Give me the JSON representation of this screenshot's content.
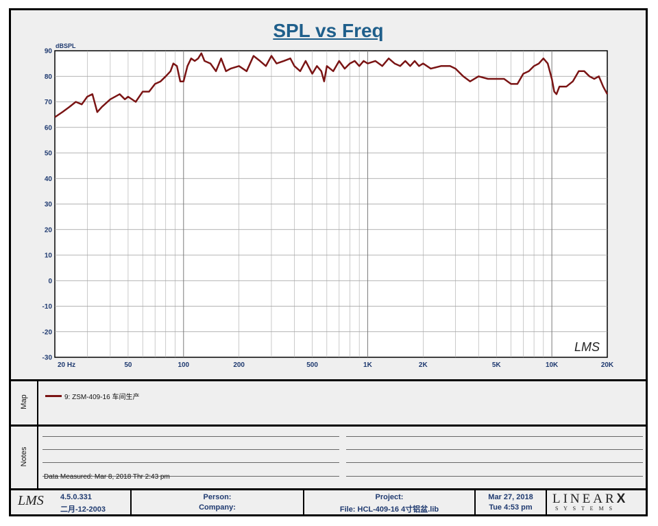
{
  "chart_data": {
    "type": "line",
    "title": "SPL vs Freq",
    "ylabel": "dBSPL",
    "xscale": "log",
    "xlim": [
      20,
      20000
    ],
    "ylim": [
      -30,
      90
    ],
    "y_ticks": [
      "90",
      "80",
      "70",
      "60",
      "50",
      "40",
      "30",
      "20",
      "10",
      "0",
      "-10",
      "-20",
      "-30"
    ],
    "x_ticks": [
      {
        "value": 20,
        "label": "20  Hz"
      },
      {
        "value": 50,
        "label": "50"
      },
      {
        "value": 100,
        "label": "100"
      },
      {
        "value": 200,
        "label": "200"
      },
      {
        "value": 500,
        "label": "500"
      },
      {
        "value": 1000,
        "label": "1K"
      },
      {
        "value": 2000,
        "label": "2K"
      },
      {
        "value": 5000,
        "label": "5K"
      },
      {
        "value": 10000,
        "label": "10K"
      },
      {
        "value": 20000,
        "label": "20K"
      }
    ],
    "grid": true,
    "watermark": "LMS",
    "series": [
      {
        "name": "9: ZSM-409-16  车间生产",
        "color": "#7a1414",
        "points": [
          [
            20,
            64
          ],
          [
            22,
            66
          ],
          [
            24,
            68
          ],
          [
            26,
            70
          ],
          [
            28,
            69
          ],
          [
            30,
            72
          ],
          [
            32,
            73
          ],
          [
            34,
            66
          ],
          [
            36,
            68
          ],
          [
            40,
            71
          ],
          [
            45,
            73
          ],
          [
            48,
            71
          ],
          [
            50,
            72
          ],
          [
            55,
            70
          ],
          [
            60,
            74
          ],
          [
            65,
            74
          ],
          [
            70,
            77
          ],
          [
            75,
            78
          ],
          [
            80,
            80
          ],
          [
            85,
            82
          ],
          [
            88,
            85
          ],
          [
            92,
            84
          ],
          [
            96,
            78
          ],
          [
            100,
            78
          ],
          [
            105,
            84
          ],
          [
            110,
            87
          ],
          [
            115,
            86
          ],
          [
            120,
            87
          ],
          [
            125,
            89
          ],
          [
            130,
            86
          ],
          [
            140,
            85
          ],
          [
            150,
            82
          ],
          [
            160,
            87
          ],
          [
            170,
            82
          ],
          [
            180,
            83
          ],
          [
            200,
            84
          ],
          [
            220,
            82
          ],
          [
            240,
            88
          ],
          [
            260,
            86
          ],
          [
            280,
            84
          ],
          [
            300,
            88
          ],
          [
            320,
            85
          ],
          [
            350,
            86
          ],
          [
            380,
            87
          ],
          [
            400,
            84
          ],
          [
            430,
            82
          ],
          [
            460,
            86
          ],
          [
            500,
            81
          ],
          [
            530,
            84
          ],
          [
            560,
            82
          ],
          [
            580,
            78
          ],
          [
            600,
            84
          ],
          [
            650,
            82
          ],
          [
            700,
            86
          ],
          [
            750,
            83
          ],
          [
            800,
            85
          ],
          [
            850,
            86
          ],
          [
            900,
            84
          ],
          [
            950,
            86
          ],
          [
            1000,
            85
          ],
          [
            1100,
            86
          ],
          [
            1200,
            84
          ],
          [
            1300,
            87
          ],
          [
            1400,
            85
          ],
          [
            1500,
            84
          ],
          [
            1600,
            86
          ],
          [
            1700,
            84
          ],
          [
            1800,
            86
          ],
          [
            1900,
            84
          ],
          [
            2000,
            85
          ],
          [
            2200,
            83
          ],
          [
            2500,
            84
          ],
          [
            2800,
            84
          ],
          [
            3000,
            83
          ],
          [
            3300,
            80
          ],
          [
            3600,
            78
          ],
          [
            4000,
            80
          ],
          [
            4500,
            79
          ],
          [
            5000,
            79
          ],
          [
            5500,
            79
          ],
          [
            6000,
            77
          ],
          [
            6500,
            77
          ],
          [
            7000,
            81
          ],
          [
            7500,
            82
          ],
          [
            8000,
            84
          ],
          [
            8500,
            85
          ],
          [
            9000,
            87
          ],
          [
            9500,
            85
          ],
          [
            10000,
            79
          ],
          [
            10300,
            74
          ],
          [
            10600,
            73
          ],
          [
            11000,
            76
          ],
          [
            12000,
            76
          ],
          [
            13000,
            78
          ],
          [
            14000,
            82
          ],
          [
            15000,
            82
          ],
          [
            16000,
            80
          ],
          [
            17000,
            79
          ],
          [
            18000,
            80
          ],
          [
            19000,
            76
          ],
          [
            20000,
            73
          ]
        ]
      }
    ]
  },
  "map": {
    "label": "Map",
    "legend_entry": "9: ZSM-409-16  车间生产"
  },
  "notes": {
    "label": "Notes",
    "measured": "Data Measured: Mar  8, 2018  Thr  2:43 pm"
  },
  "footer": {
    "logo": "LMS",
    "version": "4.5.0.331",
    "version_date": "二月-12-2003",
    "person_label": "Person:",
    "company_label": "Company:",
    "project_label": "Project:",
    "file_label": "File: HCL-409-16  4寸铝盆.lib",
    "date": "Mar 27, 2018",
    "time": "Tue  4:53 pm",
    "brand_top": "LINEAR",
    "brand_x": "X",
    "brand_bottom": "S Y S T E M S"
  }
}
